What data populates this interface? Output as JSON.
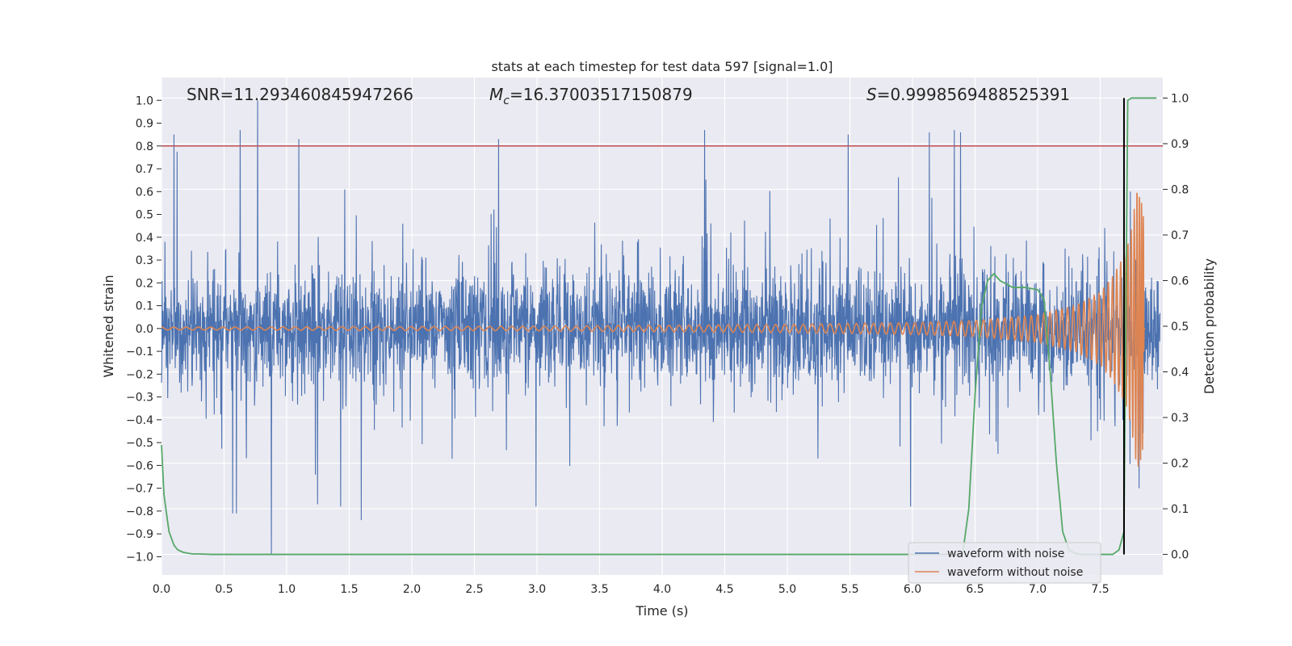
{
  "chart_data": {
    "type": "line",
    "title": "stats at each timestep for test data 597 [signal=1.0]",
    "xlabel": "Time (s)",
    "ylabel": "Whitened strain",
    "y2label": "Detection probability",
    "xlim": [
      0.0,
      8.0
    ],
    "ylim": [
      -1.08,
      1.1
    ],
    "y2lim": [
      -0.045,
      1.045
    ],
    "x_ticks": [
      0.0,
      0.5,
      1.0,
      1.5,
      2.0,
      2.5,
      3.0,
      3.5,
      4.0,
      4.5,
      5.0,
      5.5,
      6.0,
      6.5,
      7.0,
      7.5
    ],
    "x_tick_labels": [
      "0.0",
      "0.5",
      "1.0",
      "1.5",
      "2.0",
      "2.5",
      "3.0",
      "3.5",
      "4.0",
      "4.5",
      "5.0",
      "5.5",
      "6.0",
      "6.5",
      "7.0",
      "7.5"
    ],
    "y_ticks": [
      1.0,
      0.9,
      0.8,
      0.7,
      0.6,
      0.5,
      0.4,
      0.3,
      0.2,
      0.1,
      0.0,
      -0.1,
      -0.2,
      -0.3,
      -0.4,
      -0.5,
      -0.6,
      -0.7,
      -0.8,
      -0.9,
      -1.0
    ],
    "y_tick_labels": [
      "1.0",
      "0.9",
      "0.8",
      "0.7",
      "0.6",
      "0.5",
      "0.4",
      "0.3",
      "0.2",
      "0.1",
      "0.0",
      "−0.1",
      "−0.2",
      "−0.3",
      "−0.4",
      "−0.5",
      "−0.6",
      "−0.7",
      "−0.8",
      "−0.9",
      "−1.0"
    ],
    "y2_ticks": [
      1.0,
      0.9,
      0.8,
      0.7,
      0.6,
      0.5,
      0.4,
      0.3,
      0.2,
      0.1,
      0.0
    ],
    "y2_tick_labels": [
      "1.0",
      "0.9",
      "0.8",
      "0.7",
      "0.6",
      "0.5",
      "0.4",
      "0.3",
      "0.2",
      "0.1",
      "0.0"
    ],
    "grid": true,
    "annotations": {
      "snr": "SNR=11.293460845947266",
      "mc_symbol": "M",
      "mc_sub": "c",
      "mc_value": "=16.37003517150879",
      "s_symbol": "S",
      "s_value": "=0.9998569488525391"
    },
    "threshold": {
      "y": 0.8,
      "color": "#c44e52"
    },
    "detection_time": {
      "x": 7.69,
      "color": "#000000"
    },
    "series": [
      {
        "name": "waveform with noise",
        "color": "#4c72b0",
        "kind": "noise",
        "description": "whitened strain, noise dominated, approx. within ±0.6 with spikes",
        "spikes": [
          [
            0.1,
            0.85
          ],
          [
            0.77,
            1.0
          ],
          [
            0.88,
            -0.99
          ],
          [
            0.63,
            0.87
          ],
          [
            1.1,
            0.83
          ],
          [
            2.7,
            0.83
          ],
          [
            4.35,
            0.87
          ],
          [
            6.35,
            0.87
          ],
          [
            6.4,
            0.86
          ],
          [
            6.15,
            0.86
          ],
          [
            1.6,
            -0.84
          ],
          [
            3.0,
            -0.78
          ],
          [
            6.0,
            -0.78
          ],
          [
            0.57,
            -0.81
          ],
          [
            0.6,
            -0.81
          ],
          [
            1.25,
            -0.77
          ],
          [
            7.83,
            -0.7
          ],
          [
            7.76,
            0.6
          ],
          [
            5.5,
            0.85
          ]
        ]
      },
      {
        "name": "waveform without noise",
        "color": "#dd8452",
        "kind": "chirp",
        "description": "binary inspiral chirp, amplitude growing toward merger near 7.8 s",
        "amplitude_points": [
          [
            0.0,
            0.006
          ],
          [
            3.0,
            0.01
          ],
          [
            5.0,
            0.018
          ],
          [
            6.0,
            0.026
          ],
          [
            6.5,
            0.035
          ],
          [
            7.0,
            0.06
          ],
          [
            7.3,
            0.1
          ],
          [
            7.5,
            0.16
          ],
          [
            7.6,
            0.23
          ],
          [
            7.7,
            0.33
          ],
          [
            7.75,
            0.44
          ],
          [
            7.8,
            0.64
          ],
          [
            7.85,
            0.5
          ]
        ]
      },
      {
        "name": "detection probability",
        "color": "#55a868",
        "axis": "right",
        "x": [
          0.0,
          0.02,
          0.06,
          0.1,
          0.13,
          0.17,
          0.2,
          0.25,
          0.3,
          0.4,
          6.4,
          6.45,
          6.5,
          6.55,
          6.6,
          6.65,
          6.7,
          6.8,
          6.9,
          7.0,
          7.05,
          7.1,
          7.15,
          7.2,
          7.25,
          7.3,
          7.35,
          7.6,
          7.65,
          7.69,
          7.72,
          7.75,
          7.8,
          7.85,
          7.9,
          7.95
        ],
        "values": [
          0.24,
          0.13,
          0.05,
          0.02,
          0.01,
          0.005,
          0.003,
          0.001,
          0.001,
          0.0,
          0.0,
          0.1,
          0.35,
          0.54,
          0.6,
          0.615,
          0.6,
          0.585,
          0.585,
          0.58,
          0.56,
          0.4,
          0.2,
          0.05,
          0.01,
          0.002,
          0.0,
          0.0,
          0.01,
          0.05,
          0.995,
          1.0,
          1.0,
          1.0,
          1.0,
          1.0
        ]
      }
    ],
    "legend": {
      "placement": "lower-right",
      "entries": [
        "waveform with noise",
        "waveform without noise"
      ]
    }
  }
}
